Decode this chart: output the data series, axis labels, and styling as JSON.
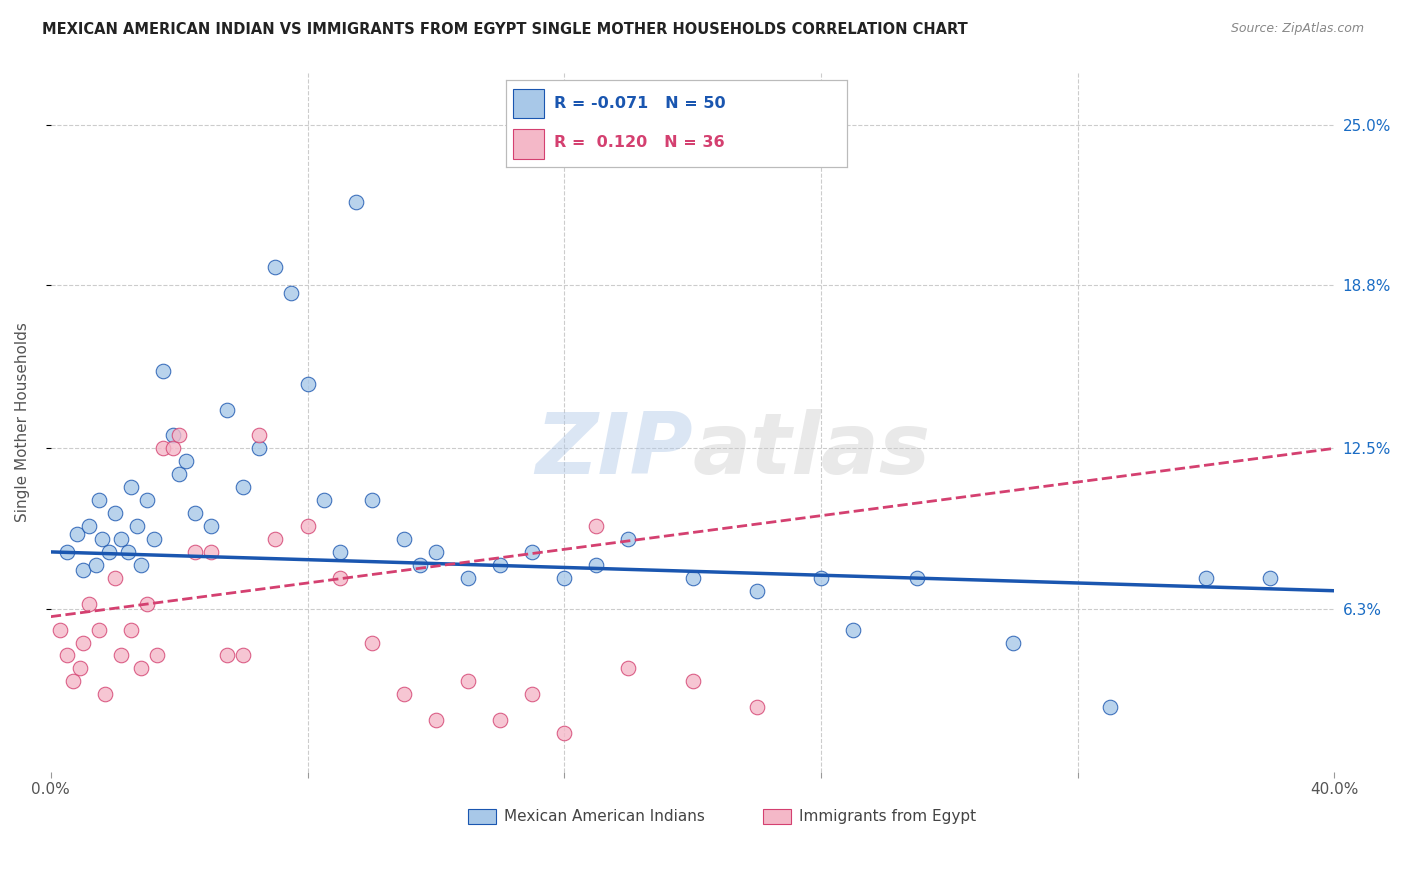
{
  "title": "MEXICAN AMERICAN INDIAN VS IMMIGRANTS FROM EGYPT SINGLE MOTHER HOUSEHOLDS CORRELATION CHART",
  "source": "Source: ZipAtlas.com",
  "ylabel": "Single Mother Households",
  "xlim": [
    0.0,
    40.0
  ],
  "ylim": [
    0.0,
    27.0
  ],
  "blue_R": -0.071,
  "blue_N": 50,
  "pink_R": 0.12,
  "pink_N": 36,
  "blue_color": "#a8c8e8",
  "pink_color": "#f4b8c8",
  "blue_line_color": "#1a56b0",
  "pink_line_color": "#d44070",
  "legend_label_blue": "Mexican American Indians",
  "legend_label_pink": "Immigrants from Egypt",
  "watermark_zip": "ZIP",
  "watermark_atlas": "atlas",
  "blue_x": [
    0.5,
    0.8,
    1.0,
    1.2,
    1.4,
    1.5,
    1.6,
    1.8,
    2.0,
    2.2,
    2.4,
    2.5,
    2.7,
    2.8,
    3.0,
    3.2,
    3.5,
    3.8,
    4.0,
    4.2,
    4.5,
    5.0,
    5.5,
    6.0,
    6.5,
    7.0,
    7.5,
    8.0,
    8.5,
    9.0,
    9.5,
    10.0,
    11.0,
    11.5,
    12.0,
    13.0,
    14.0,
    15.0,
    16.0,
    17.0,
    18.0,
    20.0,
    22.0,
    24.0,
    25.0,
    27.0,
    30.0,
    33.0,
    36.0,
    38.0
  ],
  "blue_y": [
    8.5,
    9.2,
    7.8,
    9.5,
    8.0,
    10.5,
    9.0,
    8.5,
    10.0,
    9.0,
    8.5,
    11.0,
    9.5,
    8.0,
    10.5,
    9.0,
    15.5,
    13.0,
    11.5,
    12.0,
    10.0,
    9.5,
    14.0,
    11.0,
    12.5,
    19.5,
    18.5,
    15.0,
    10.5,
    8.5,
    22.0,
    10.5,
    9.0,
    8.0,
    8.5,
    7.5,
    8.0,
    8.5,
    7.5,
    8.0,
    9.0,
    7.5,
    7.0,
    7.5,
    5.5,
    7.5,
    5.0,
    2.5,
    7.5,
    7.5
  ],
  "pink_x": [
    0.3,
    0.5,
    0.7,
    0.9,
    1.0,
    1.2,
    1.5,
    1.7,
    2.0,
    2.2,
    2.5,
    2.8,
    3.0,
    3.3,
    3.5,
    3.8,
    4.0,
    4.5,
    5.0,
    5.5,
    6.0,
    6.5,
    7.0,
    8.0,
    9.0,
    10.0,
    11.0,
    12.0,
    13.0,
    14.0,
    15.0,
    16.0,
    17.0,
    18.0,
    20.0,
    22.0
  ],
  "pink_y": [
    5.5,
    4.5,
    3.5,
    4.0,
    5.0,
    6.5,
    5.5,
    3.0,
    7.5,
    4.5,
    5.5,
    4.0,
    6.5,
    4.5,
    12.5,
    12.5,
    13.0,
    8.5,
    8.5,
    4.5,
    4.5,
    13.0,
    9.0,
    9.5,
    7.5,
    5.0,
    3.0,
    2.0,
    3.5,
    2.0,
    3.0,
    1.5,
    9.5,
    4.0,
    3.5,
    2.5
  ]
}
